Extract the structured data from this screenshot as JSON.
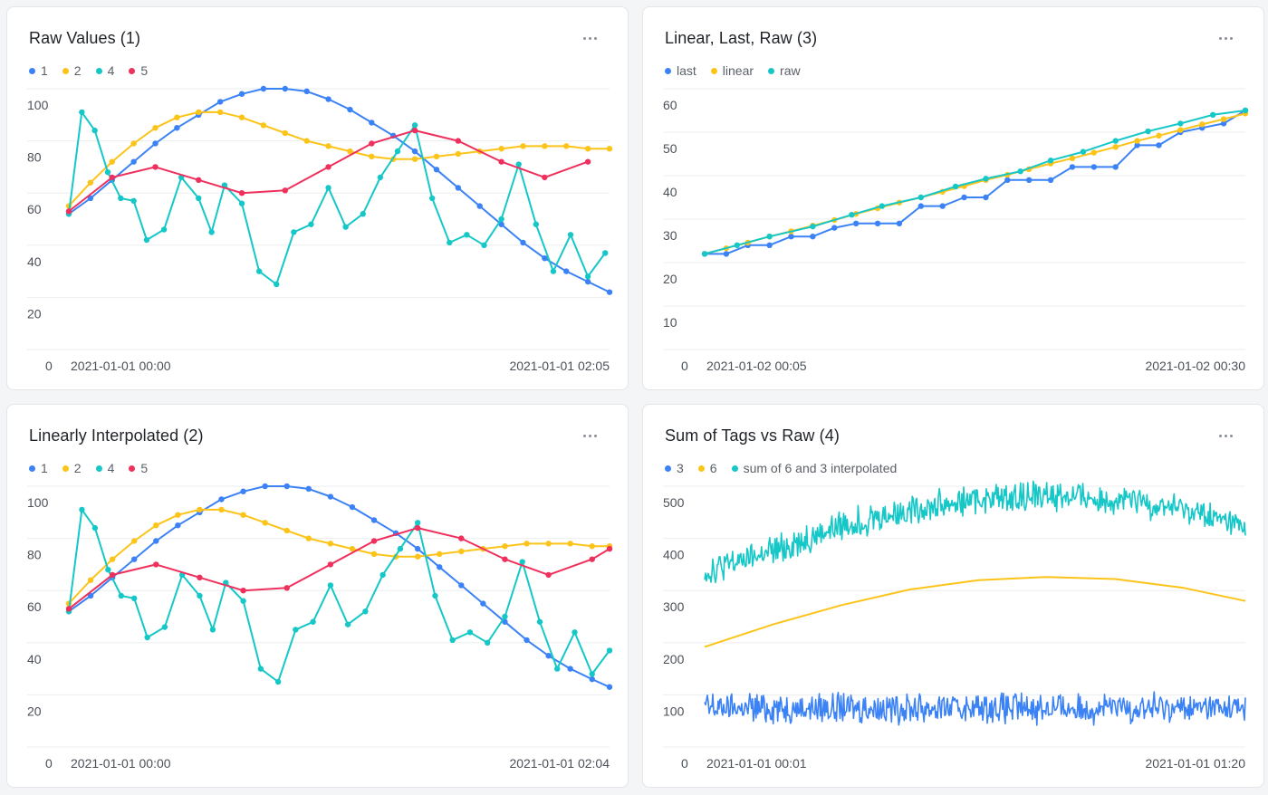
{
  "colors": {
    "blue": "#3b82f6",
    "yellow": "#fcc419",
    "teal": "#16c7c8",
    "red": "#f0305c"
  },
  "panels": [
    {
      "title": "Raw Values (1)",
      "legend": [
        {
          "label": "1",
          "color": "#3b82f6"
        },
        {
          "label": "2",
          "color": "#fcc419"
        },
        {
          "label": "4",
          "color": "#16c7c8"
        },
        {
          "label": "5",
          "color": "#f0305c"
        }
      ]
    },
    {
      "title": "Linear, Last, Raw (3)",
      "legend": [
        {
          "label": "last",
          "color": "#3b82f6"
        },
        {
          "label": "linear",
          "color": "#fcc419"
        },
        {
          "label": "raw",
          "color": "#16c7c8"
        }
      ]
    },
    {
      "title": "Linearly Interpolated (2)",
      "legend": [
        {
          "label": "1",
          "color": "#3b82f6"
        },
        {
          "label": "2",
          "color": "#fcc419"
        },
        {
          "label": "4",
          "color": "#16c7c8"
        },
        {
          "label": "5",
          "color": "#f0305c"
        }
      ]
    },
    {
      "title": "Sum of Tags vs Raw (4)",
      "legend": [
        {
          "label": "3",
          "color": "#3b82f6"
        },
        {
          "label": "6",
          "color": "#fcc419"
        },
        {
          "label": "sum of 6 and 3 interpolated",
          "color": "#16c7c8"
        }
      ]
    }
  ],
  "chart_data": [
    {
      "type": "line",
      "title": "Raw Values (1)",
      "ylim": [
        0,
        100
      ],
      "yticks": [
        0,
        20,
        40,
        60,
        80,
        100
      ],
      "xticks": [
        "2021-01-01 00:00",
        "2021-01-01 02:05"
      ],
      "grid": true,
      "legend_position": "top-left",
      "x_range": [
        0,
        125
      ],
      "series": [
        {
          "name": "1",
          "color": "#3b82f6",
          "marker": true,
          "x": [
            0,
            5,
            10,
            15,
            20,
            25,
            30,
            35,
            40,
            45,
            50,
            55,
            60,
            65,
            70,
            75,
            80,
            85,
            90,
            95,
            100,
            105,
            110,
            115,
            120,
            125
          ],
          "values": [
            52,
            58,
            65,
            72,
            79,
            85,
            90,
            95,
            98,
            100,
            100,
            99,
            96,
            92,
            87,
            82,
            76,
            69,
            62,
            55,
            48,
            41,
            35,
            30,
            26,
            22
          ]
        },
        {
          "name": "2",
          "color": "#fcc419",
          "marker": true,
          "x": [
            0,
            5,
            10,
            15,
            20,
            25,
            30,
            35,
            40,
            45,
            50,
            55,
            60,
            65,
            70,
            75,
            80,
            85,
            90,
            95,
            100,
            105,
            110,
            115,
            120,
            125
          ],
          "values": [
            55,
            64,
            72,
            79,
            85,
            89,
            91,
            91,
            89,
            86,
            83,
            80,
            78,
            76,
            74,
            73,
            73,
            74,
            75,
            76,
            77,
            78,
            78,
            78,
            77,
            77
          ]
        },
        {
          "name": "4",
          "color": "#16c7c8",
          "marker": true,
          "x": [
            0,
            3,
            6,
            9,
            12,
            15,
            18,
            22,
            26,
            30,
            33,
            36,
            40,
            44,
            48,
            52,
            56,
            60,
            64,
            68,
            72,
            76,
            80,
            84,
            88,
            92,
            96,
            100,
            104,
            108,
            112,
            116,
            120,
            124
          ],
          "values": [
            52,
            91,
            84,
            68,
            58,
            57,
            42,
            46,
            66,
            58,
            45,
            63,
            56,
            30,
            25,
            45,
            48,
            62,
            47,
            52,
            66,
            76,
            86,
            58,
            41,
            44,
            40,
            50,
            71,
            48,
            30,
            44,
            28,
            37
          ]
        },
        {
          "name": "5",
          "color": "#f0305c",
          "marker": true,
          "x": [
            0,
            10,
            20,
            30,
            40,
            50,
            60,
            70,
            80,
            90,
            100,
            110,
            120
          ],
          "values": [
            53,
            66,
            70,
            65,
            60,
            61,
            70,
            79,
            84,
            80,
            72,
            66,
            72
          ]
        }
      ]
    },
    {
      "type": "line",
      "title": "Linear, Last, Raw (3)",
      "ylim": [
        0,
        60
      ],
      "yticks": [
        0,
        10,
        20,
        30,
        40,
        50,
        60
      ],
      "xticks": [
        "2021-01-02 00:05",
        "2021-01-02 00:30"
      ],
      "grid": true,
      "legend_position": "top-left",
      "x_range": [
        0,
        25
      ],
      "series": [
        {
          "name": "last",
          "color": "#3b82f6",
          "marker": true,
          "x": [
            0,
            1,
            2,
            3,
            4,
            5,
            6,
            7,
            8,
            9,
            10,
            11,
            12,
            13,
            14,
            15,
            16,
            17,
            18,
            19,
            20,
            21,
            22,
            23,
            24,
            25
          ],
          "values": [
            22,
            22,
            24,
            24,
            26,
            26,
            28,
            29,
            29,
            29,
            33,
            33,
            35,
            35,
            39,
            39,
            39,
            42,
            42,
            42,
            47,
            47,
            50,
            51,
            52,
            55
          ]
        },
        {
          "name": "linear",
          "color": "#fcc419",
          "marker": true,
          "x": [
            0,
            1,
            2,
            3,
            4,
            5,
            6,
            7,
            8,
            9,
            10,
            11,
            12,
            13,
            14,
            15,
            16,
            17,
            18,
            19,
            20,
            21,
            22,
            23,
            24,
            25
          ],
          "values": [
            22,
            23.3,
            24.6,
            26,
            27.2,
            28.5,
            29.8,
            31.2,
            32.5,
            33.8,
            35,
            36.3,
            37.6,
            39,
            40.2,
            41.5,
            42.8,
            44,
            45.3,
            46.6,
            48,
            49.2,
            50.5,
            51.8,
            53,
            54.3
          ]
        },
        {
          "name": "raw",
          "color": "#16c7c8",
          "marker": true,
          "x": [
            0,
            1.5,
            3,
            5,
            6.8,
            8.2,
            10,
            11.6,
            13,
            14.6,
            16,
            17.5,
            19,
            20.5,
            22,
            23.5,
            25
          ],
          "values": [
            22,
            24,
            26,
            28.3,
            31,
            33,
            35,
            37.5,
            39.3,
            41,
            43.5,
            45.5,
            48,
            50.2,
            52,
            54,
            55
          ]
        }
      ]
    },
    {
      "type": "line",
      "title": "Linearly Interpolated (2)",
      "ylim": [
        0,
        100
      ],
      "yticks": [
        0,
        20,
        40,
        60,
        80,
        100
      ],
      "xticks": [
        "2021-01-01 00:00",
        "2021-01-01 02:04"
      ],
      "grid": true,
      "legend_position": "top-left",
      "x_range": [
        0,
        124
      ],
      "series": [
        {
          "name": "1",
          "color": "#3b82f6",
          "marker": true,
          "x": [
            0,
            5,
            10,
            15,
            20,
            25,
            30,
            35,
            40,
            45,
            50,
            55,
            60,
            65,
            70,
            75,
            80,
            85,
            90,
            95,
            100,
            105,
            110,
            115,
            120,
            124
          ],
          "values": [
            52,
            58,
            65,
            72,
            79,
            85,
            90,
            95,
            98,
            100,
            100,
            99,
            96,
            92,
            87,
            82,
            76,
            69,
            62,
            55,
            48,
            41,
            35,
            30,
            26,
            23
          ]
        },
        {
          "name": "2",
          "color": "#fcc419",
          "marker": true,
          "x": [
            0,
            5,
            10,
            15,
            20,
            25,
            30,
            35,
            40,
            45,
            50,
            55,
            60,
            65,
            70,
            75,
            80,
            85,
            90,
            95,
            100,
            105,
            110,
            115,
            120,
            124
          ],
          "values": [
            55,
            64,
            72,
            79,
            85,
            89,
            91,
            91,
            89,
            86,
            83,
            80,
            78,
            76,
            74,
            73,
            73,
            74,
            75,
            76,
            77,
            78,
            78,
            78,
            77,
            77
          ]
        },
        {
          "name": "4",
          "color": "#16c7c8",
          "marker": true,
          "x": [
            0,
            3,
            6,
            9,
            12,
            15,
            18,
            22,
            26,
            30,
            33,
            36,
            40,
            44,
            48,
            52,
            56,
            60,
            64,
            68,
            72,
            76,
            80,
            84,
            88,
            92,
            96,
            100,
            104,
            108,
            112,
            116,
            120,
            124
          ],
          "values": [
            52,
            91,
            84,
            68,
            58,
            57,
            42,
            46,
            66,
            58,
            45,
            63,
            56,
            30,
            25,
            45,
            48,
            62,
            47,
            52,
            66,
            76,
            86,
            58,
            41,
            44,
            40,
            50,
            71,
            48,
            30,
            44,
            28,
            37
          ]
        },
        {
          "name": "5",
          "color": "#f0305c",
          "marker": true,
          "x": [
            0,
            10,
            20,
            30,
            40,
            50,
            60,
            70,
            80,
            90,
            100,
            110,
            120,
            124
          ],
          "values": [
            53,
            66,
            70,
            65,
            60,
            61,
            70,
            79,
            84,
            80,
            72,
            66,
            72,
            76
          ]
        }
      ]
    },
    {
      "type": "line",
      "title": "Sum of Tags vs Raw (4)",
      "ylim": [
        0,
        500
      ],
      "yticks": [
        0,
        100,
        200,
        300,
        400,
        500
      ],
      "xticks": [
        "2021-01-01 00:01",
        "2021-01-01 01:20"
      ],
      "grid": true,
      "legend_position": "top-left",
      "x_range": [
        0,
        79
      ],
      "series": [
        {
          "name": "3",
          "color": "#3b82f6",
          "marker": false,
          "noise": {
            "base": 75,
            "amp": 40,
            "points": 600
          }
        },
        {
          "name": "6",
          "color": "#fcc419",
          "marker": false,
          "x": [
            0,
            10,
            20,
            30,
            40,
            50,
            60,
            70,
            79
          ],
          "values": [
            192,
            235,
            272,
            302,
            320,
            326,
            322,
            305,
            280
          ]
        },
        {
          "name": "sum of 6 and 3 interpolated",
          "color": "#16c7c8",
          "marker": false,
          "noise": {
            "curve": [
              [
                0,
                335
              ],
              [
                10,
                375
              ],
              [
                20,
                425
              ],
              [
                30,
                455
              ],
              [
                40,
                475
              ],
              [
                50,
                483
              ],
              [
                60,
                475
              ],
              [
                70,
                455
              ],
              [
                79,
                420
              ]
            ],
            "amp": 40,
            "points": 600
          }
        }
      ]
    }
  ]
}
